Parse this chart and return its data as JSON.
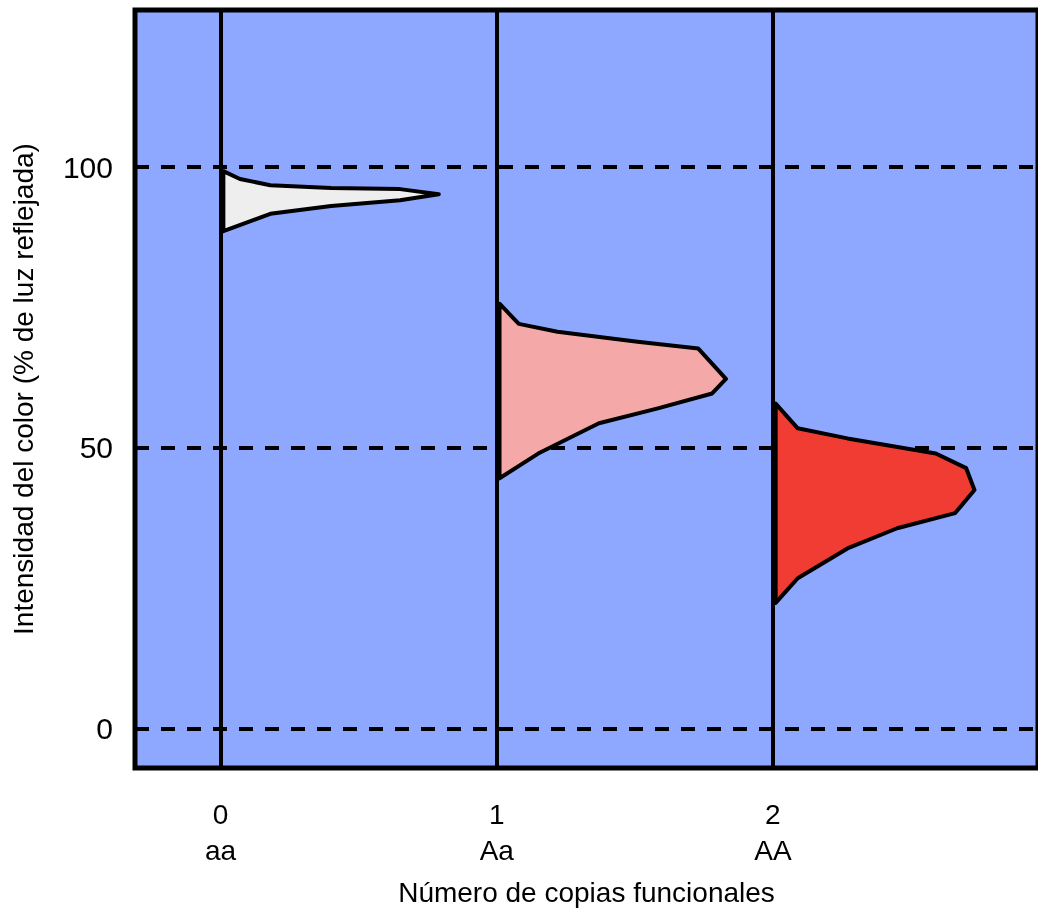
{
  "chart_data": {
    "type": "area",
    "xlabel": "Número de copias funcionales",
    "ylabel": "Intensidad del color (% de luz reflejada)",
    "xlim": [
      -0.31,
      2.96
    ],
    "xticks": [
      {
        "value": 0,
        "label": "0\naa"
      },
      {
        "value": 1,
        "label": "1\nAa"
      },
      {
        "value": 2,
        "label": "2\nAA"
      }
    ],
    "ylim": [
      -7,
      128
    ],
    "yticks": [
      0,
      50,
      100
    ],
    "grid": "y",
    "ref_lines": [
      {
        "axis": "x",
        "value": 0,
        "color": "#000000",
        "line_style": "solid"
      },
      {
        "axis": "x",
        "value": 1,
        "color": "#000000",
        "line_style": "solid"
      },
      {
        "axis": "x",
        "value": 2,
        "color": "#000000",
        "line_style": "solid"
      }
    ],
    "series": [
      {
        "color": "#eeeeee",
        "x": [
          0.01,
          0.07,
          0.18,
          0.4,
          0.65,
          0.79,
          0.65,
          0.4,
          0.18,
          0.01
        ],
        "values": [
          99.3,
          97.9,
          96.8,
          96.3,
          96.1,
          95.2,
          94.1,
          93.1,
          91.7,
          88.6
        ]
      },
      {
        "color": "#f4a8a8",
        "x": [
          1.01,
          1.08,
          1.22,
          1.51,
          1.73,
          1.83,
          1.78,
          1.58,
          1.37,
          1.15,
          1.01
        ],
        "values": [
          75.7,
          72.1,
          70.7,
          68.9,
          67.7,
          62.3,
          59.7,
          57.0,
          54.4,
          49.0,
          44.6
        ]
      },
      {
        "color": "#f03c32",
        "x": [
          2.01,
          2.09,
          2.27,
          2.59,
          2.7,
          2.73,
          2.66,
          2.45,
          2.27,
          2.09,
          2.01
        ],
        "values": [
          57.9,
          53.5,
          51.7,
          49.0,
          46.4,
          42.5,
          38.4,
          35.7,
          32.1,
          26.8,
          22.4
        ]
      }
    ]
  }
}
